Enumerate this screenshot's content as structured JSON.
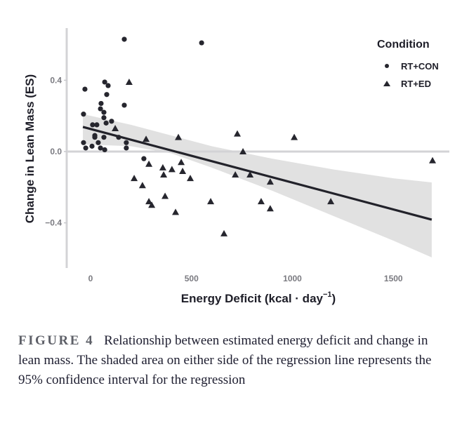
{
  "chart_data": {
    "type": "scatter",
    "title": "",
    "xlabel": "Energy Deficit (kcal · day⁻¹)",
    "xlabel_main": "Energy Deficit (kcal · day",
    "xlabel_sup": "−1",
    "xlabel_close": ")",
    "ylabel": "Change in Lean Mass (ES)",
    "xlim": [
      -120,
      1750
    ],
    "ylim": [
      -0.65,
      0.68
    ],
    "xticks": [
      0,
      500,
      1000,
      1500
    ],
    "xtick_labels": [
      "0",
      "500",
      "1000",
      "1500"
    ],
    "yticks": [
      0.4,
      0.0,
      -0.4
    ],
    "ytick_labels": [
      "0.4",
      "0.0",
      "−0.4"
    ],
    "reference_line_y": 0,
    "legend": {
      "title": "Condition",
      "placement": "top-right",
      "entries": [
        {
          "name": "RT+CON",
          "marker": "circle"
        },
        {
          "name": "RT+ED",
          "marker": "triangle"
        }
      ]
    },
    "series": [
      {
        "name": "RT+CON",
        "marker": "circle",
        "points": [
          [
            167,
            0.63
          ],
          [
            550,
            0.61
          ],
          [
            70,
            0.39
          ],
          [
            87,
            0.37
          ],
          [
            -28,
            0.35
          ],
          [
            80,
            0.32
          ],
          [
            52,
            0.27
          ],
          [
            49,
            0.24
          ],
          [
            167,
            0.26
          ],
          [
            -35,
            0.21
          ],
          [
            66,
            0.22
          ],
          [
            66,
            0.19
          ],
          [
            77,
            0.16
          ],
          [
            104,
            0.17
          ],
          [
            10,
            0.15
          ],
          [
            31,
            0.15
          ],
          [
            21,
            0.09
          ],
          [
            21,
            0.08
          ],
          [
            38,
            0.05
          ],
          [
            66,
            0.08
          ],
          [
            -35,
            0.05
          ],
          [
            -24,
            0.02
          ],
          [
            7,
            0.03
          ],
          [
            49,
            0.02
          ],
          [
            70,
            0.01
          ],
          [
            139,
            0.08
          ],
          [
            177,
            0.05
          ],
          [
            177,
            0.02
          ],
          [
            264,
            -0.04
          ]
        ]
      },
      {
        "name": "RT+ED",
        "marker": "triangle",
        "points": [
          [
            191,
            0.39
          ],
          [
            122,
            0.13
          ],
          [
            275,
            0.07
          ],
          [
            435,
            0.08
          ],
          [
            289,
            -0.07
          ],
          [
            358,
            -0.09
          ],
          [
            403,
            -0.1
          ],
          [
            449,
            -0.06
          ],
          [
            456,
            -0.11
          ],
          [
            362,
            -0.13
          ],
          [
            494,
            -0.15
          ],
          [
            216,
            -0.15
          ],
          [
            257,
            -0.19
          ],
          [
            369,
            -0.25
          ],
          [
            289,
            -0.28
          ],
          [
            303,
            -0.3
          ],
          [
            421,
            -0.34
          ],
          [
            595,
            -0.28
          ],
          [
            727,
            0.1
          ],
          [
            1009,
            0.08
          ],
          [
            755,
            0.0
          ],
          [
            717,
            -0.13
          ],
          [
            790,
            -0.13
          ],
          [
            890,
            -0.17
          ],
          [
            845,
            -0.28
          ],
          [
            890,
            -0.32
          ],
          [
            661,
            -0.46
          ],
          [
            1190,
            -0.28
          ],
          [
            1694,
            -0.05
          ]
        ]
      }
    ],
    "regression": {
      "x": [
        -38,
        1690
      ],
      "y": [
        0.138,
        -0.382
      ]
    },
    "confidence_band": {
      "level": "95%",
      "x": [
        -38,
        200,
        400,
        600,
        900,
        1200,
        1500,
        1690
      ],
      "upper": [
        0.21,
        0.15,
        0.09,
        0.03,
        -0.04,
        -0.1,
        -0.15,
        -0.173
      ],
      "lower": [
        0.04,
        0.03,
        -0.01,
        -0.09,
        -0.22,
        -0.36,
        -0.5,
        -0.594
      ]
    }
  },
  "caption": {
    "label": "FIGURE 4",
    "text": "Relationship between estimated energy deficit and change in lean mass. The shaded area on either side of the regression line represents the 95% confidence interval for the regression"
  }
}
